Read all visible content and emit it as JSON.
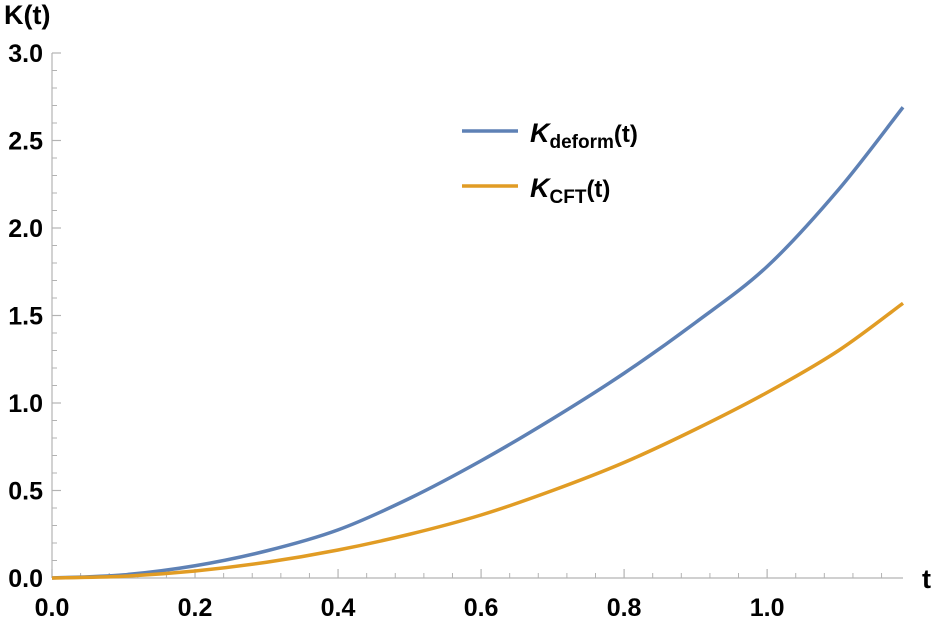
{
  "chart_data": {
    "type": "line",
    "xlabel": "t",
    "ylabel": "K(t)",
    "xlim": [
      0,
      1.19
    ],
    "ylim": [
      0,
      3.0
    ],
    "xticks": [
      "0.0",
      "0.2",
      "0.4",
      "0.6",
      "0.8",
      "1.0"
    ],
    "yticks": [
      "0.0",
      "0.5",
      "1.0",
      "1.5",
      "2.0",
      "2.5",
      "3.0"
    ],
    "xtick_values": [
      0,
      0.2,
      0.4,
      0.6,
      0.8,
      1.0
    ],
    "ytick_values": [
      0,
      0.5,
      1.0,
      1.5,
      2.0,
      2.5,
      3.0
    ],
    "grid": false,
    "legend_position": "top-center",
    "x": [
      0,
      0.1,
      0.2,
      0.3,
      0.4,
      0.5,
      0.6,
      0.7,
      0.8,
      0.9,
      1.0,
      1.1,
      1.19
    ],
    "series": [
      {
        "name_main": "K",
        "name_sub": "deform",
        "name_arg": "(t)",
        "color": "#5E81B5",
        "values": [
          0,
          0.018,
          0.07,
          0.155,
          0.275,
          0.455,
          0.67,
          0.91,
          1.17,
          1.46,
          1.78,
          2.22,
          2.69
        ]
      },
      {
        "name_main": "K",
        "name_sub": "CFT",
        "name_arg": "(t)",
        "color": "#E19C24",
        "values": [
          0,
          0.01,
          0.04,
          0.09,
          0.16,
          0.25,
          0.36,
          0.5,
          0.66,
          0.85,
          1.06,
          1.3,
          1.57
        ]
      }
    ]
  }
}
